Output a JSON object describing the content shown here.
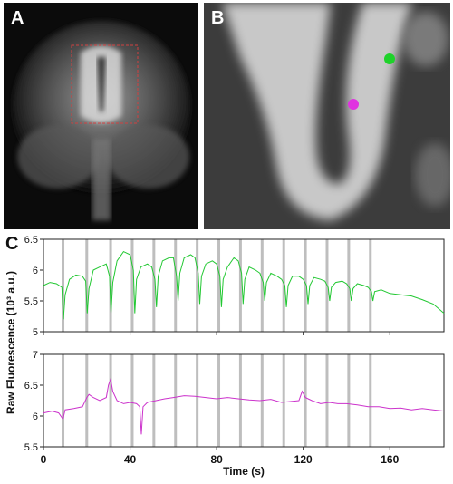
{
  "figure": {
    "panel_labels": {
      "a": "A",
      "b": "B",
      "c": "C"
    },
    "colors": {
      "series_top": "#22c832",
      "series_bottom": "#cc33cc",
      "stim_bar": "#a8a8a8",
      "roi_box": "#d04040",
      "dot_green": "#1ed22a",
      "dot_magenta": "#e033e0"
    }
  },
  "chart_data": {
    "type": "line",
    "xlabel": "Time (s)",
    "ylabel": "Raw Fluorescence (10³ a.u.)",
    "xlim": [
      0,
      185
    ],
    "xticks": [
      "0",
      "40",
      "80",
      "120",
      "160"
    ],
    "xtick_values": [
      0,
      40,
      80,
      120,
      160
    ],
    "stimulus_times": [
      9,
      20,
      31,
      41,
      51,
      61,
      71,
      81,
      91,
      101,
      111,
      121,
      131,
      141,
      151
    ],
    "subplots": [
      {
        "name": "green",
        "ylim": [
          5,
          6.5
        ],
        "yticks": [
          "5",
          "5.5",
          "6",
          "6.5"
        ],
        "ytick_values": [
          5,
          5.5,
          6,
          6.5
        ],
        "series": {
          "x": [
            0,
            3,
            6,
            8.5,
            9.2,
            10,
            12,
            15,
            18,
            19.5,
            20.2,
            21,
            23,
            26,
            29,
            30.5,
            31.2,
            32,
            34,
            37,
            40,
            41.5,
            42.2,
            43,
            45,
            48,
            50,
            51.5,
            52.2,
            53,
            55,
            58,
            60,
            61.5,
            62.2,
            63,
            65,
            68,
            70,
            71.5,
            72.2,
            73,
            75,
            78,
            80,
            81.5,
            82.2,
            83,
            85,
            88,
            90,
            91.5,
            92.2,
            93,
            95,
            98,
            100,
            101.5,
            102.2,
            103,
            105,
            108,
            110,
            111.5,
            112.2,
            113,
            115,
            118,
            120,
            121.5,
            122.2,
            123,
            125,
            128,
            130,
            131.5,
            132.2,
            133,
            135,
            138,
            140,
            141.5,
            142.2,
            143,
            145,
            148,
            150,
            151.5,
            152.2,
            153,
            156,
            160,
            165,
            170,
            175,
            180,
            185
          ],
          "y": [
            5.75,
            5.8,
            5.78,
            5.72,
            5.2,
            5.6,
            5.85,
            5.92,
            5.9,
            5.82,
            5.3,
            5.7,
            6.0,
            6.05,
            6.1,
            5.9,
            5.3,
            5.8,
            6.15,
            6.3,
            6.25,
            6.0,
            5.3,
            5.85,
            6.05,
            6.1,
            6.05,
            5.85,
            5.4,
            5.9,
            6.15,
            6.2,
            6.2,
            5.9,
            5.5,
            5.95,
            6.2,
            6.25,
            6.2,
            5.95,
            5.45,
            5.9,
            6.1,
            6.15,
            6.1,
            5.9,
            5.4,
            5.85,
            6.05,
            6.2,
            6.15,
            5.95,
            5.45,
            5.85,
            6.05,
            6.0,
            5.95,
            5.8,
            5.5,
            5.8,
            5.95,
            5.9,
            5.85,
            5.75,
            5.4,
            5.75,
            5.9,
            5.9,
            5.85,
            5.75,
            5.45,
            5.75,
            5.88,
            5.85,
            5.82,
            5.72,
            5.5,
            5.72,
            5.8,
            5.82,
            5.78,
            5.7,
            5.5,
            5.7,
            5.78,
            5.75,
            5.72,
            5.65,
            5.5,
            5.65,
            5.68,
            5.62,
            5.6,
            5.58,
            5.52,
            5.45,
            5.3
          ]
        }
      },
      {
        "name": "magenta",
        "ylim": [
          5.5,
          7
        ],
        "yticks": [
          "5.5",
          "6",
          "6.5",
          "7"
        ],
        "ytick_values": [
          5.5,
          6,
          6.5,
          7
        ],
        "series": {
          "x": [
            0,
            4,
            7,
            9,
            10,
            14,
            18,
            20,
            21,
            23,
            26,
            29,
            30,
            31,
            32,
            34,
            37,
            40,
            43,
            44.5,
            45.2,
            46,
            48,
            52,
            56,
            60,
            65,
            70,
            75,
            80,
            85,
            90,
            95,
            100,
            105,
            110,
            115,
            118,
            119.5,
            121,
            124,
            128,
            132,
            136,
            140,
            145,
            150,
            155,
            160,
            165,
            170,
            175,
            180,
            185
          ],
          "y": [
            6.05,
            6.08,
            6.05,
            5.95,
            6.1,
            6.12,
            6.15,
            6.3,
            6.35,
            6.3,
            6.25,
            6.3,
            6.5,
            6.6,
            6.4,
            6.25,
            6.2,
            6.22,
            6.2,
            6.15,
            5.7,
            6.15,
            6.22,
            6.25,
            6.28,
            6.3,
            6.33,
            6.32,
            6.3,
            6.28,
            6.3,
            6.28,
            6.26,
            6.25,
            6.27,
            6.22,
            6.24,
            6.25,
            6.4,
            6.3,
            6.25,
            6.2,
            6.22,
            6.2,
            6.2,
            6.18,
            6.15,
            6.15,
            6.12,
            6.13,
            6.1,
            6.12,
            6.1,
            6.08
          ]
        }
      }
    ]
  }
}
